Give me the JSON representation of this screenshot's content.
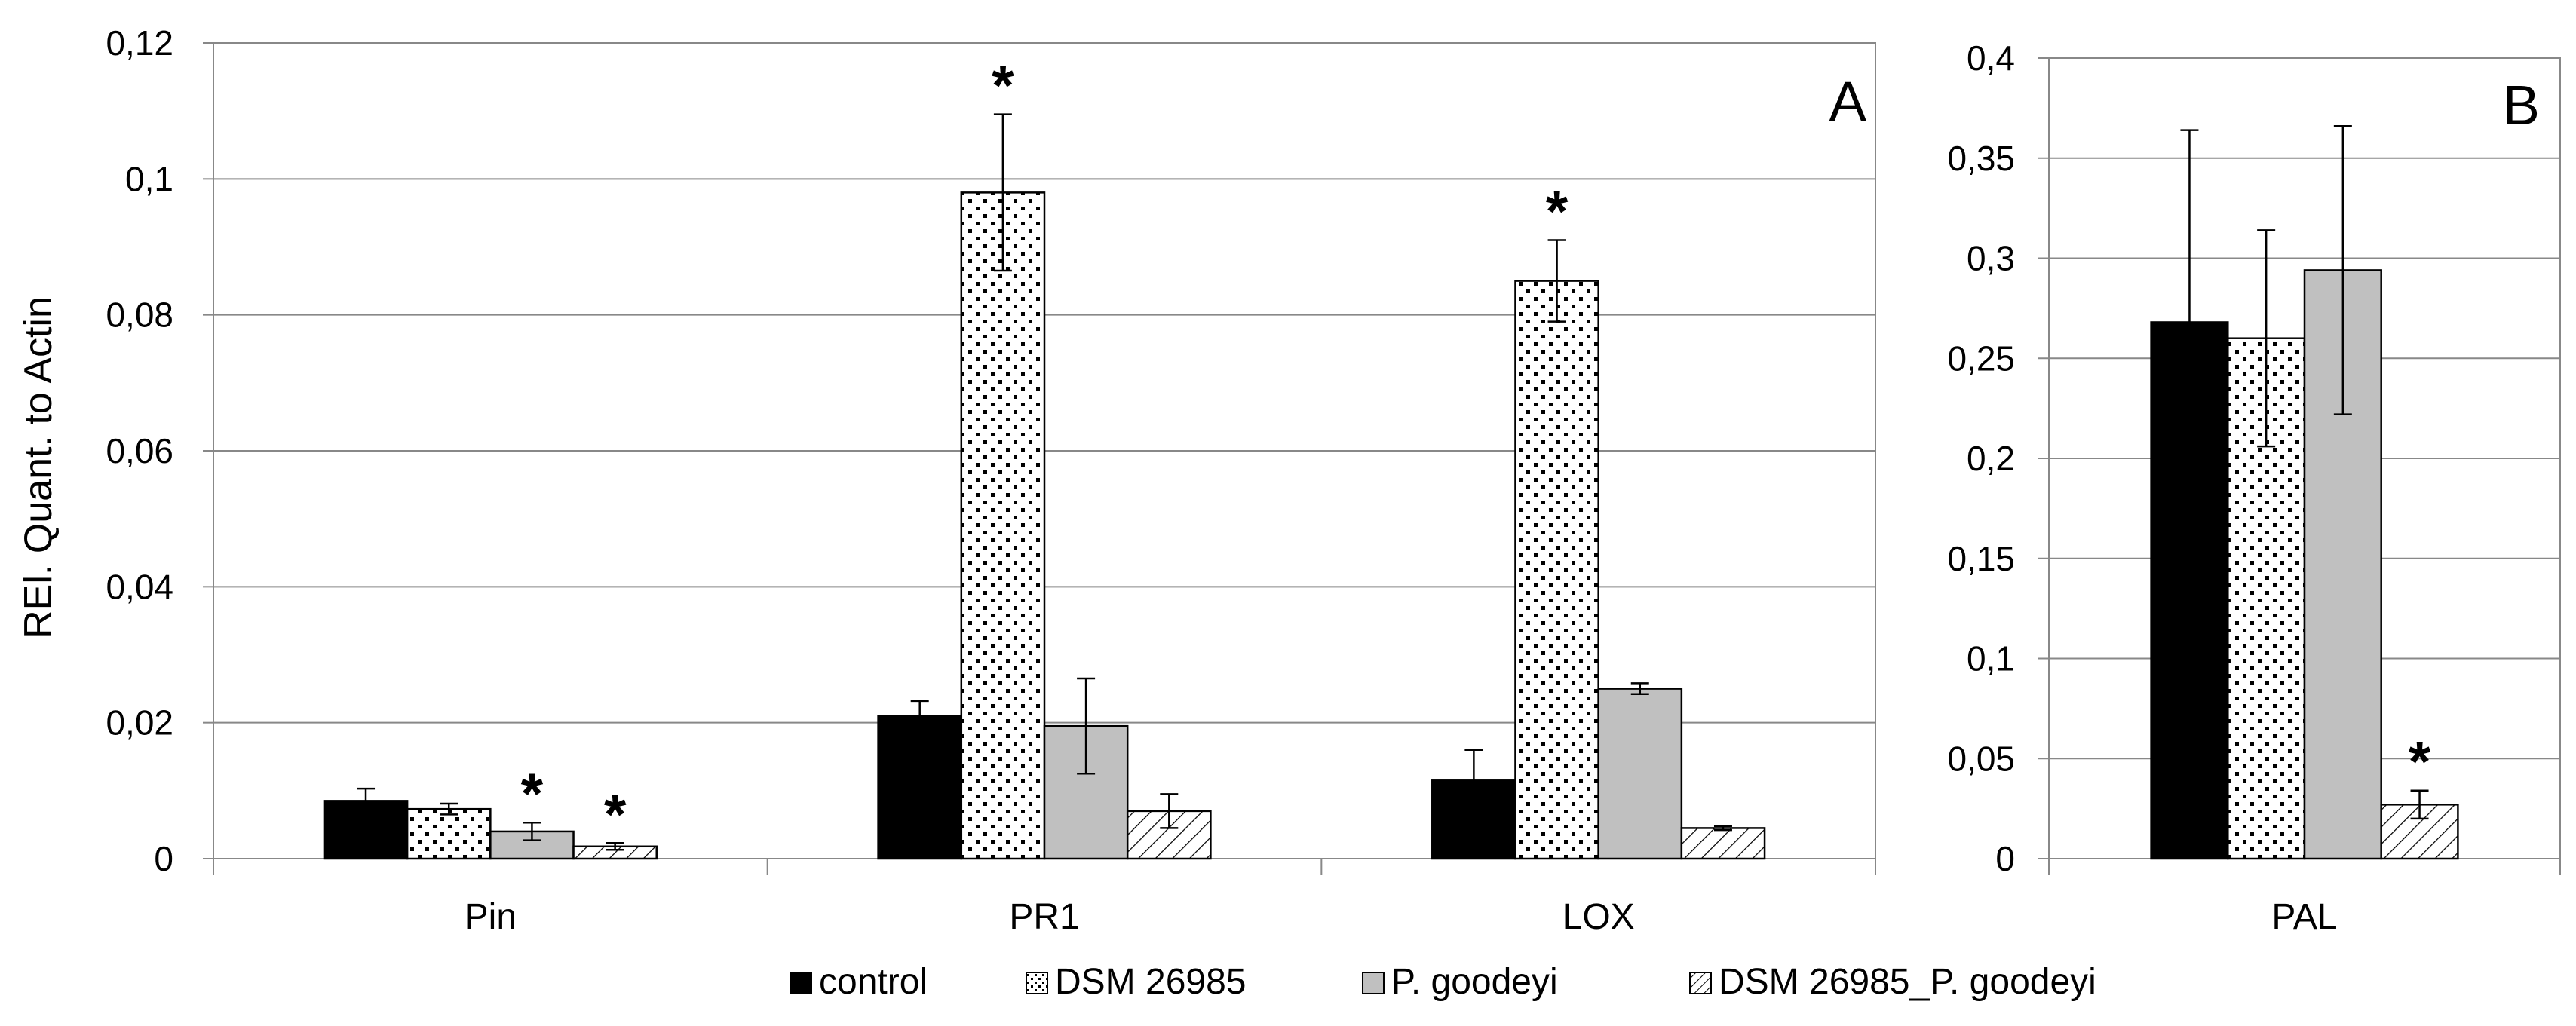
{
  "colors": {
    "control": "#000000",
    "dsm": "#ffffff",
    "goodeyi": "#c0c0c0",
    "combo": "#ffffff",
    "grid": "#888888",
    "axis": "#888888",
    "text": "#000000"
  },
  "ylabel": "REl. Quant. to Actin",
  "legend": {
    "items": [
      {
        "key": "control",
        "label": "control"
      },
      {
        "key": "dsm",
        "label": "DSM 26985"
      },
      {
        "key": "goodeyi",
        "label": "P. goodeyi"
      },
      {
        "key": "combo",
        "label": "DSM 26985_P. goodeyi"
      }
    ]
  },
  "chart_data": [
    {
      "type": "bar",
      "panel_label": "A",
      "ylabel": "REl. Quant. to Actin",
      "ylim": [
        0,
        0.12
      ],
      "yticks": [
        0,
        0.02,
        0.04,
        0.06,
        0.08,
        0.1,
        0.12
      ],
      "ytick_labels": [
        "0",
        "0,02",
        "0,04",
        "0,06",
        "0,08",
        "0,1",
        "0,12"
      ],
      "grid": true,
      "categories": [
        "Pin",
        "PR1",
        "LOX"
      ],
      "series": [
        {
          "name": "control",
          "values": [
            0.0085,
            0.021,
            0.0115
          ],
          "errors": [
            0.0018,
            0.0022,
            0.0045
          ],
          "significant": [
            false,
            false,
            false
          ]
        },
        {
          "name": "DSM 26985",
          "values": [
            0.0073,
            0.098,
            0.085
          ],
          "errors": [
            0.0008,
            0.0115,
            0.006
          ],
          "significant": [
            false,
            true,
            true
          ]
        },
        {
          "name": "P. goodeyi",
          "values": [
            0.004,
            0.0195,
            0.025
          ],
          "errors": [
            0.0013,
            0.007,
            0.0008
          ],
          "significant": [
            true,
            false,
            false
          ]
        },
        {
          "name": "DSM 26985_P. goodeyi",
          "values": [
            0.0018,
            0.007,
            0.0045
          ],
          "errors": [
            0.0005,
            0.0025,
            0.0003
          ],
          "significant": [
            true,
            false,
            false
          ]
        }
      ],
      "significance_marker": "*"
    },
    {
      "type": "bar",
      "panel_label": "B",
      "ylim": [
        0,
        0.4
      ],
      "yticks": [
        0,
        0.05,
        0.1,
        0.15,
        0.2,
        0.25,
        0.3,
        0.35,
        0.4
      ],
      "ytick_labels": [
        "0",
        "0,05",
        "0,1",
        "0,15",
        "0,2",
        "0,25",
        "0,3",
        "0,35",
        "0,4"
      ],
      "grid": true,
      "categories": [
        "PAL"
      ],
      "series": [
        {
          "name": "control",
          "values": [
            0.268
          ],
          "errors": [
            0.096
          ],
          "significant": [
            false
          ]
        },
        {
          "name": "DSM 26985",
          "values": [
            0.26
          ],
          "errors": [
            0.054
          ],
          "significant": [
            false
          ]
        },
        {
          "name": "P. goodeyi",
          "values": [
            0.294
          ],
          "errors": [
            0.072
          ],
          "significant": [
            false
          ]
        },
        {
          "name": "DSM 26985_P. goodeyi",
          "values": [
            0.027
          ],
          "errors": [
            0.007
          ],
          "significant": [
            true
          ]
        }
      ],
      "significance_marker": "*"
    }
  ]
}
